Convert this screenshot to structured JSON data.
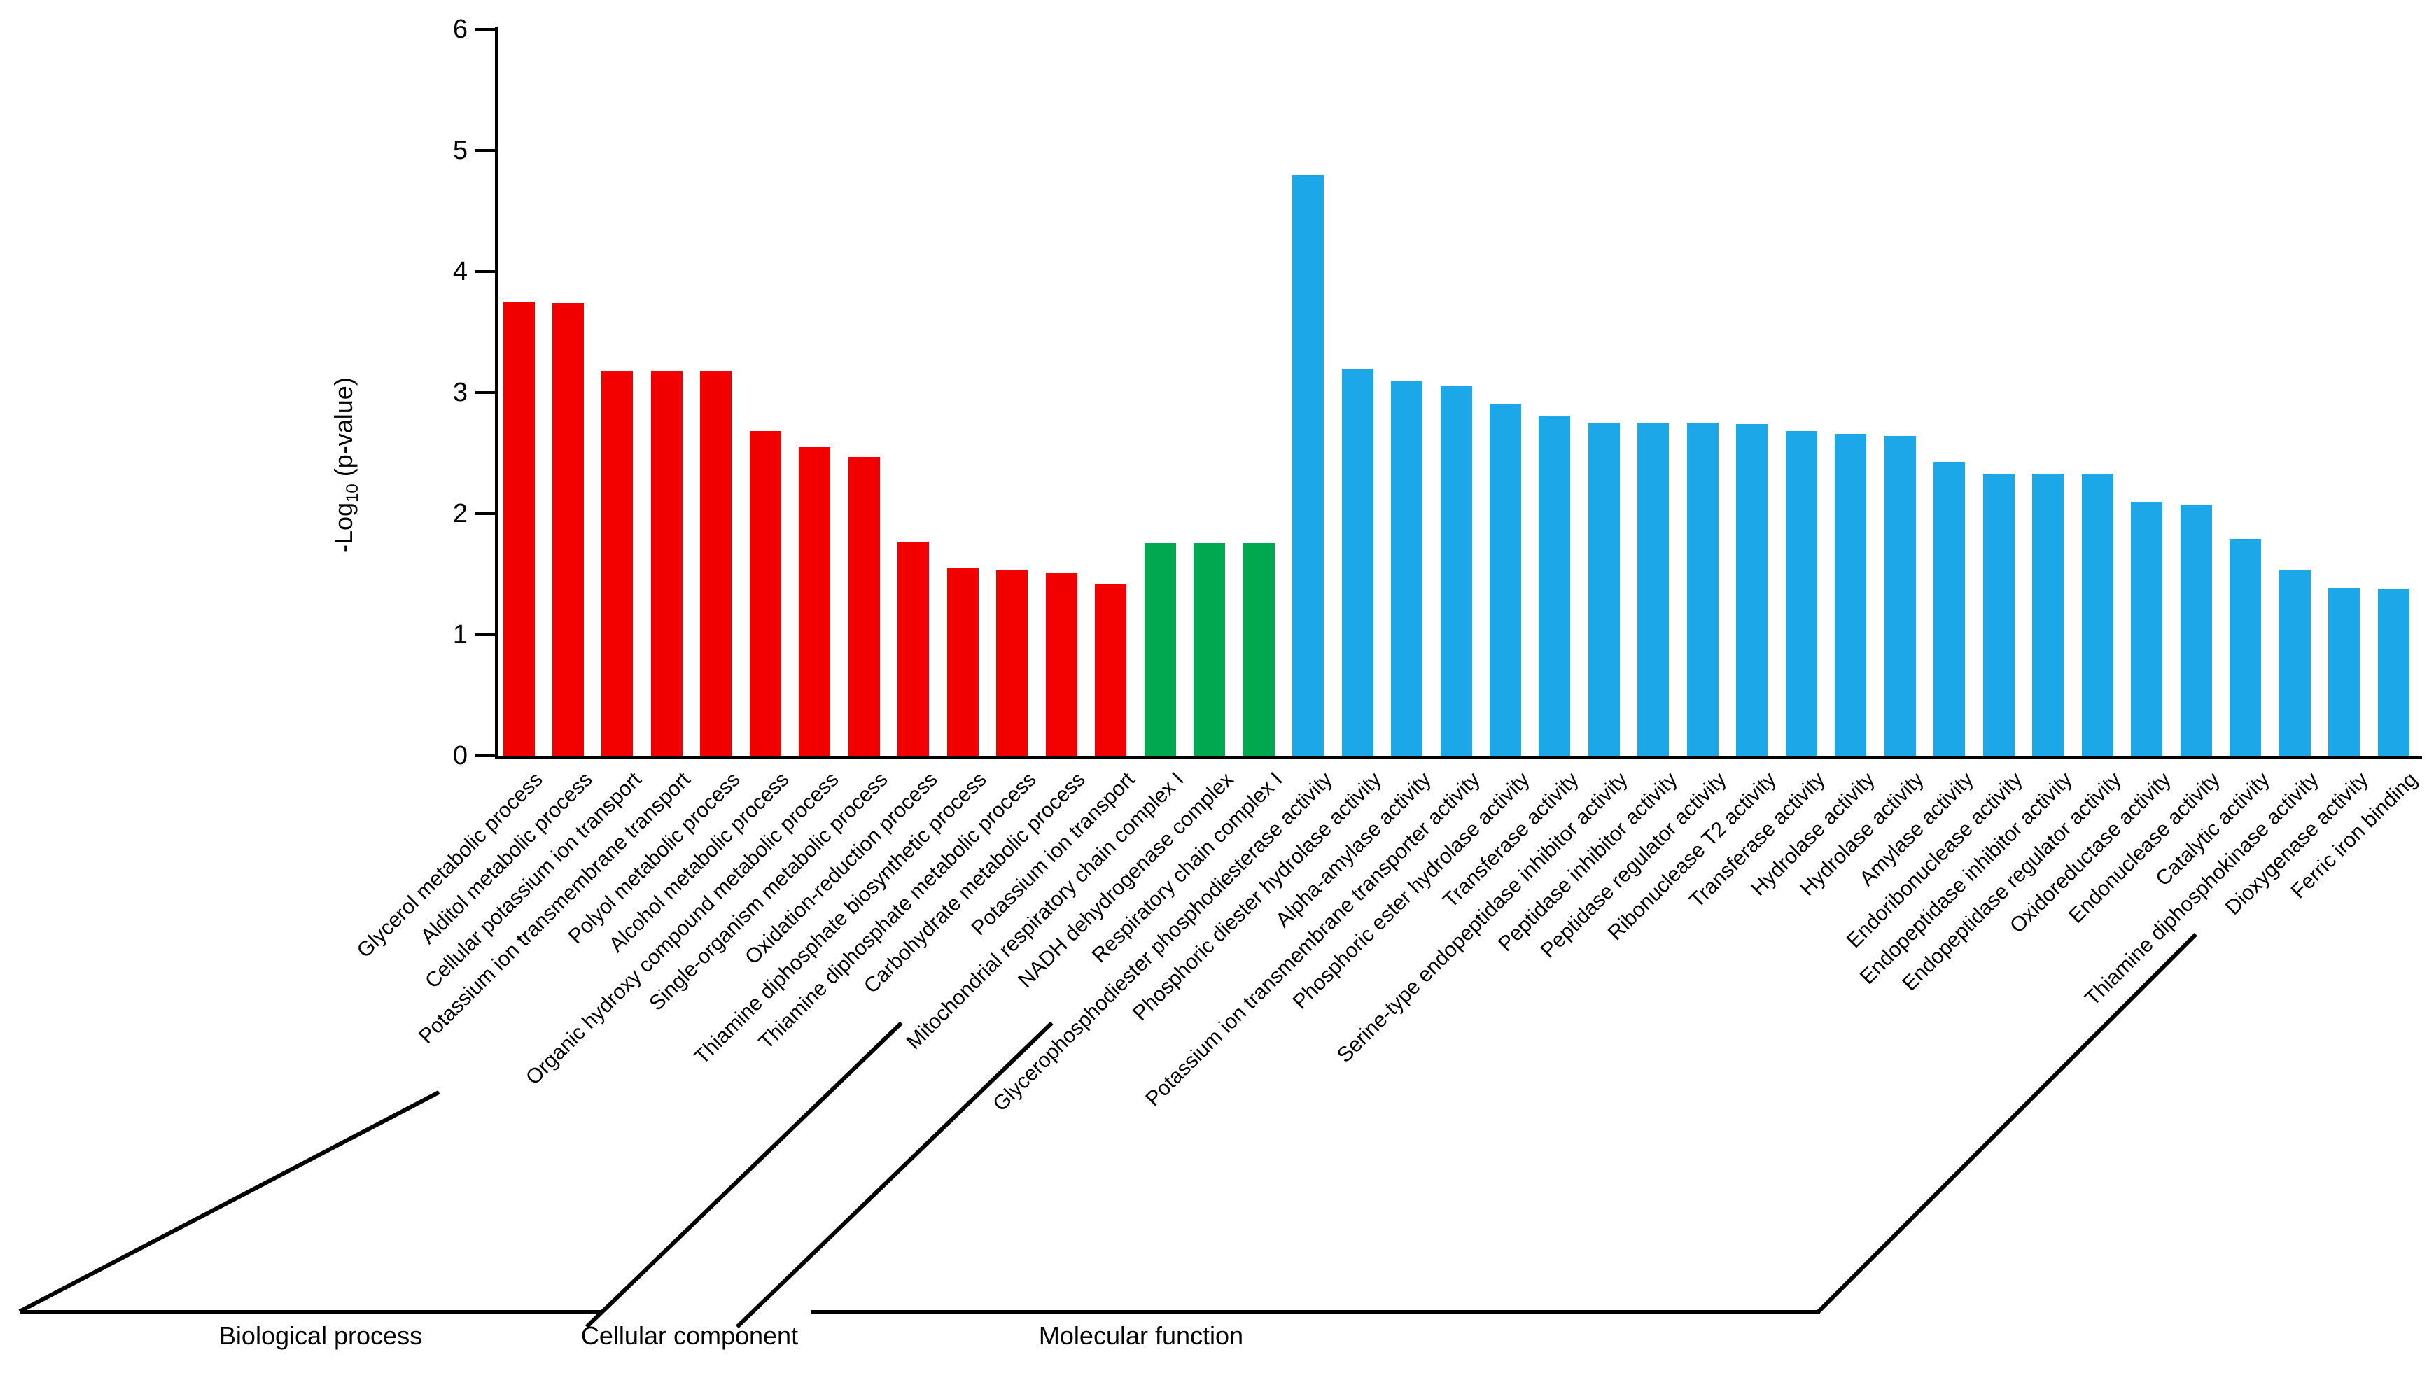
{
  "chart_data": {
    "type": "bar",
    "title": "",
    "ylabel_prefix": "-Log",
    "ylabel_sub": "10",
    "ylabel_suffix": " (p-value)",
    "ylabel_text": "-Log10 (p-value)",
    "xlabel": "",
    "ylim": [
      0,
      6
    ],
    "yticks": [
      0,
      1,
      2,
      3,
      4,
      5,
      6
    ],
    "grid": false,
    "legend": "none",
    "axis_color": "#000000",
    "background_color": "#ffffff",
    "groups": [
      {
        "name": "Biological process",
        "color": "#f20000",
        "bars": [
          {
            "label": "Glycerol metabolic process",
            "value": 3.75
          },
          {
            "label": "Alditol metabolic process",
            "value": 3.74
          },
          {
            "label": "Cellular potassium ion transport",
            "value": 3.18
          },
          {
            "label": "Potassium ion transmembrane transport",
            "value": 3.18
          },
          {
            "label": "Polyol metabolic process",
            "value": 3.18
          },
          {
            "label": "Alcohol metabolic process",
            "value": 2.68
          },
          {
            "label": "Organic hydroxy compound metabolic process",
            "value": 2.55
          },
          {
            "label": "Single-organism metabolic process",
            "value": 2.47
          },
          {
            "label": "Oxidation-reduction process",
            "value": 1.77
          },
          {
            "label": "Thiamine diphosphate biosynthetic process",
            "value": 1.55
          },
          {
            "label": "Thiamine diphosphate metabolic process",
            "value": 1.54
          },
          {
            "label": "Carbohydrate metabolic process",
            "value": 1.51
          },
          {
            "label": "Potassium ion transport",
            "value": 1.42
          }
        ]
      },
      {
        "name": "Cellular component",
        "color": "#00a84f",
        "bars": [
          {
            "label": "Mitochondrial respiratory chain complex I",
            "value": 1.76
          },
          {
            "label": "NADH dehydrogenase complex",
            "value": 1.76
          },
          {
            "label": "Respiratory chain complex I",
            "value": 1.76
          }
        ]
      },
      {
        "name": "Molecular function",
        "color": "#1ba7e8",
        "bars": [
          {
            "label": "Glycerophosphodiester phosphodiesterase activity",
            "value": 4.8
          },
          {
            "label": "Phosphoric diester hydrolase activity",
            "value": 3.19
          },
          {
            "label": "Alpha-amylase activity",
            "value": 3.1
          },
          {
            "label": "Potassium ion transmembrane transporter activity",
            "value": 3.05
          },
          {
            "label": "Phosphoric ester hydrolase activity",
            "value": 2.9
          },
          {
            "label": "Transferase activity",
            "value": 2.81
          },
          {
            "label": "Serine-type endopeptidase inhibitor activity",
            "value": 2.75
          },
          {
            "label": "Peptidase inhibitor activity",
            "value": 2.75
          },
          {
            "label": "Peptidase regulator activity",
            "value": 2.75
          },
          {
            "label": "Ribonuclease T2 activity",
            "value": 2.74
          },
          {
            "label": "Transferase activity",
            "value": 2.68
          },
          {
            "label": "Hydrolase activity",
            "value": 2.66
          },
          {
            "label": "Hydrolase activity",
            "value": 2.64
          },
          {
            "label": "Amylase activity",
            "value": 2.43
          },
          {
            "label": "Endoribonuclease activity",
            "value": 2.33
          },
          {
            "label": "Endopeptidase inhibitor activity",
            "value": 2.33
          },
          {
            "label": "Endopeptidase regulator activity",
            "value": 2.33
          },
          {
            "label": "Oxidoreductase activity",
            "value": 2.1
          },
          {
            "label": "Endonuclease activity",
            "value": 2.07
          },
          {
            "label": "Catalytic activity",
            "value": 1.79
          },
          {
            "label": "Thiamine diphosphokinase activity",
            "value": 1.54
          },
          {
            "label": "Dioxygenase activity",
            "value": 1.39
          },
          {
            "label": "Ferric iron binding",
            "value": 1.38
          }
        ]
      }
    ]
  }
}
